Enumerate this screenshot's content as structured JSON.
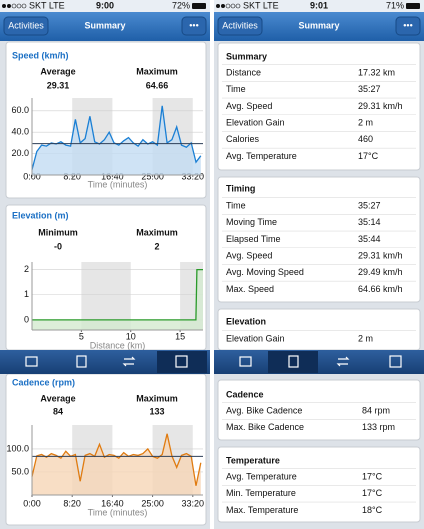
{
  "status_bars": [
    {
      "carrier": "SKT LTE",
      "time": "9:00",
      "battery": "72%"
    },
    {
      "carrier": "SKT LTE",
      "time": "9:01",
      "battery": "71%"
    }
  ],
  "nav_bars": [
    {
      "back": "Activities",
      "title": "Summary",
      "menu": "•••"
    },
    {
      "back": "Activities",
      "title": "Summary",
      "menu": "•••"
    }
  ],
  "chart_data": [
    {
      "type": "line",
      "title": "Speed (km/h)",
      "stats": [
        {
          "label": "Average",
          "value": 29.31
        },
        {
          "label": "Maximum",
          "value": 64.66
        }
      ],
      "average_line": true,
      "x": [
        0,
        1,
        2,
        3,
        4,
        5,
        6,
        7,
        8,
        9,
        10,
        11,
        12,
        13,
        14,
        15,
        16,
        17,
        18,
        19,
        20,
        21,
        22,
        23,
        24,
        25,
        26,
        27,
        28,
        29,
        30,
        31,
        32,
        33,
        34,
        35
      ],
      "values": [
        5,
        22,
        28,
        27,
        30,
        29,
        31,
        28,
        27,
        52,
        30,
        34,
        55,
        31,
        29,
        33,
        40,
        30,
        28,
        32,
        35,
        30,
        27,
        33,
        29,
        31,
        28,
        64.66,
        30,
        33,
        45,
        28,
        26,
        30,
        12,
        18
      ],
      "color": "#1a7fd4",
      "fill": "#c3dcf3",
      "xlim": [
        0,
        35.45
      ],
      "ylim": [
        0,
        72
      ],
      "xticks": [
        {
          "value": 0,
          "label": "0:00"
        },
        {
          "value": 8.333,
          "label": "8:20"
        },
        {
          "value": 16.667,
          "label": "16:40"
        },
        {
          "value": 25,
          "label": "25:00"
        },
        {
          "value": 33.333,
          "label": "33:20"
        }
      ],
      "yticks": [
        {
          "value": 20,
          "label": "20.0"
        },
        {
          "value": 40,
          "label": "40.0"
        },
        {
          "value": 60,
          "label": "60.0"
        }
      ],
      "xlabel": "Time (minutes)"
    },
    {
      "type": "line",
      "title": "Elevation (m)",
      "stats": [
        {
          "label": "Minimum",
          "value": 0,
          "value_label": "-0"
        },
        {
          "label": "Maximum",
          "value": 2
        }
      ],
      "average_line": false,
      "x": [
        0,
        16.6,
        16.7,
        17.32
      ],
      "values": [
        0,
        0,
        2,
        2
      ],
      "color": "#2a9a2a",
      "fill": "#d3ead0",
      "xlim": [
        0,
        17.32
      ],
      "ylim": [
        -0.4,
        2.3
      ],
      "xticks": [
        5,
        10,
        15
      ],
      "yticks": [
        0,
        1,
        2
      ],
      "xlabel": "Distance (km)"
    },
    {
      "type": "line",
      "title": "Cadence (rpm)",
      "stats": [
        {
          "label": "Average",
          "value": 84
        },
        {
          "label": "Maximum",
          "value": 133
        }
      ],
      "average_line": true,
      "x": [
        0,
        1,
        2,
        3,
        4,
        5,
        6,
        7,
        8,
        9,
        10,
        11,
        12,
        13,
        14,
        15,
        16,
        17,
        18,
        19,
        20,
        21,
        22,
        23,
        24,
        25,
        26,
        27,
        28,
        29,
        30,
        31,
        32,
        33,
        34,
        35
      ],
      "values": [
        40,
        85,
        88,
        82,
        90,
        86,
        80,
        95,
        84,
        88,
        30,
        86,
        90,
        84,
        110,
        82,
        88,
        86,
        80,
        92,
        84,
        88,
        86,
        90,
        100,
        84,
        80,
        88,
        133,
        85,
        60,
        86,
        90,
        84,
        20,
        70
      ],
      "color": "#e07b10",
      "fill": "#f6d6b6",
      "xlim": [
        0,
        35.45
      ],
      "ylim": [
        0,
        152
      ],
      "xticks": [
        {
          "value": 0,
          "label": "0:00"
        },
        {
          "value": 8.333,
          "label": "8:20"
        },
        {
          "value": 16.667,
          "label": "16:40"
        },
        {
          "value": 25,
          "label": "25:00"
        },
        {
          "value": 33.333,
          "label": "33:20"
        }
      ],
      "yticks": [
        {
          "value": 50,
          "label": "50.0"
        },
        {
          "value": 100,
          "label": "100.0"
        }
      ],
      "xlabel": "Time (minutes)"
    }
  ],
  "tables": [
    {
      "title": "Summary",
      "rows": [
        [
          "Distance",
          "17.32 km"
        ],
        [
          "Time",
          "35:27"
        ],
        [
          "Avg. Speed",
          "29.31 km/h"
        ],
        [
          "Elevation Gain",
          "2 m"
        ],
        [
          "Calories",
          "460"
        ],
        [
          "Avg. Temperature",
          "17°C"
        ]
      ]
    },
    {
      "title": "Timing",
      "rows": [
        [
          "Time",
          "35:27"
        ],
        [
          "Moving Time",
          "35:14"
        ],
        [
          "Elapsed Time",
          "35:44"
        ],
        [
          "Avg. Speed",
          "29.31 km/h"
        ],
        [
          "Avg. Moving Speed",
          "29.49 km/h"
        ],
        [
          "Max. Speed",
          "64.66 km/h"
        ]
      ]
    },
    {
      "title": "Elevation",
      "rows": [
        [
          "Elevation Gain",
          "2 m"
        ]
      ]
    },
    {
      "title": "Cadence",
      "rows": [
        [
          "Avg. Bike Cadence",
          "84 rpm"
        ],
        [
          "Max. Bike Cadence",
          "133 rpm"
        ]
      ]
    },
    {
      "title": "Temperature",
      "rows": [
        [
          "Avg. Temperature",
          "17°C"
        ],
        [
          "Min. Temperature",
          "17°C"
        ],
        [
          "Max. Temperature",
          "18°C"
        ]
      ]
    }
  ]
}
